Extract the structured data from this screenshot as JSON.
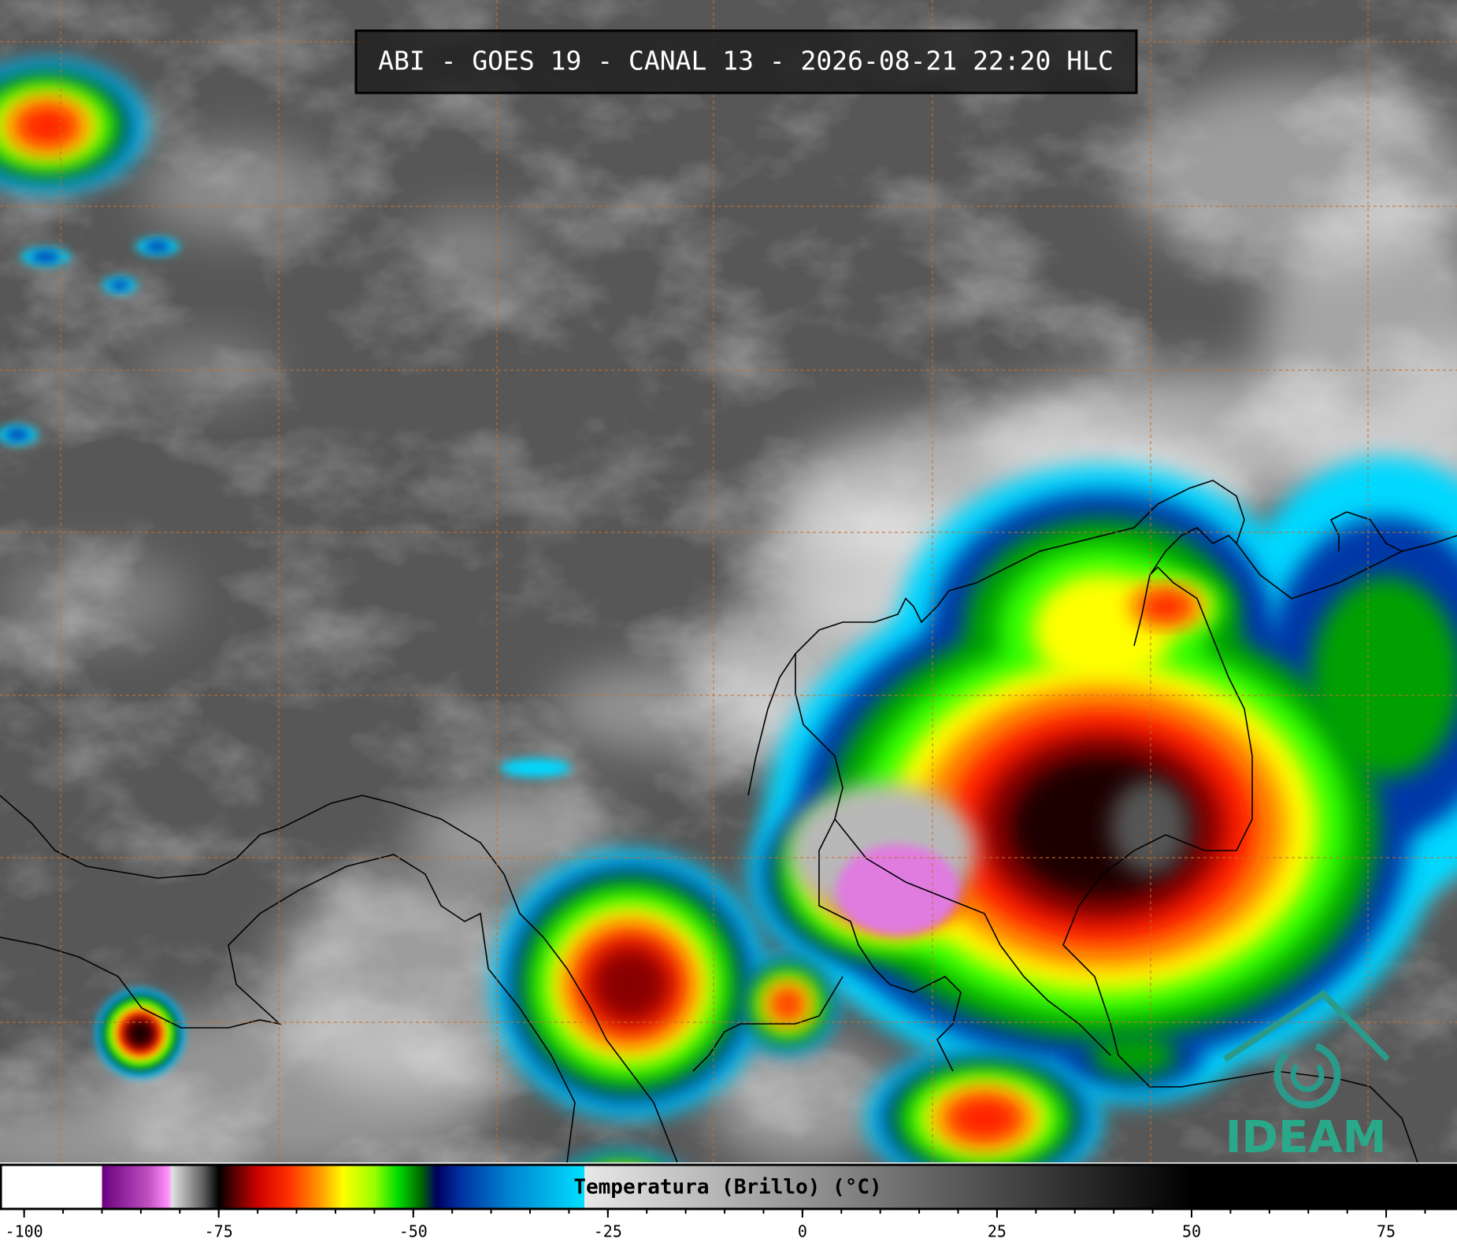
{
  "header": {
    "title": "ABI - GOES 19 - CANAL 13 - 2026-08-21 22:20 HLC"
  },
  "colorbar": {
    "label": "Temperatura (Brillo) (°C)",
    "range": [
      -103,
      84
    ],
    "ticks": [
      -100,
      -75,
      -50,
      -25,
      0,
      25,
      50,
      75
    ],
    "minor_tick_step": 5,
    "color_stops": [
      {
        "value": -103,
        "color": "#ffffff"
      },
      {
        "value": -90,
        "color": "#ffffff"
      },
      {
        "value": -90,
        "color": "#6a0080"
      },
      {
        "value": -84,
        "color": "#c050c0"
      },
      {
        "value": -81.5,
        "color": "#ff90ff"
      },
      {
        "value": -81,
        "color": "#e0e0e0"
      },
      {
        "value": -77,
        "color": "#606060"
      },
      {
        "value": -75,
        "color": "#000000"
      },
      {
        "value": -74,
        "color": "#300000"
      },
      {
        "value": -70,
        "color": "#cc0000"
      },
      {
        "value": -66,
        "color": "#ff3000"
      },
      {
        "value": -62,
        "color": "#ff9900"
      },
      {
        "value": -59,
        "color": "#ffff00"
      },
      {
        "value": -55,
        "color": "#99ff00"
      },
      {
        "value": -52,
        "color": "#00dd00"
      },
      {
        "value": -49,
        "color": "#006600"
      },
      {
        "value": -47,
        "color": "#000060"
      },
      {
        "value": -44,
        "color": "#0030a0"
      },
      {
        "value": -38,
        "color": "#0080d0"
      },
      {
        "value": -28,
        "color": "#00e0ff"
      },
      {
        "value": -28,
        "color": "#e8e8e8"
      },
      {
        "value": 50,
        "color": "#000000"
      },
      {
        "value": 84,
        "color": "#000000"
      }
    ]
  },
  "logo": {
    "text": "IDEAM"
  }
}
